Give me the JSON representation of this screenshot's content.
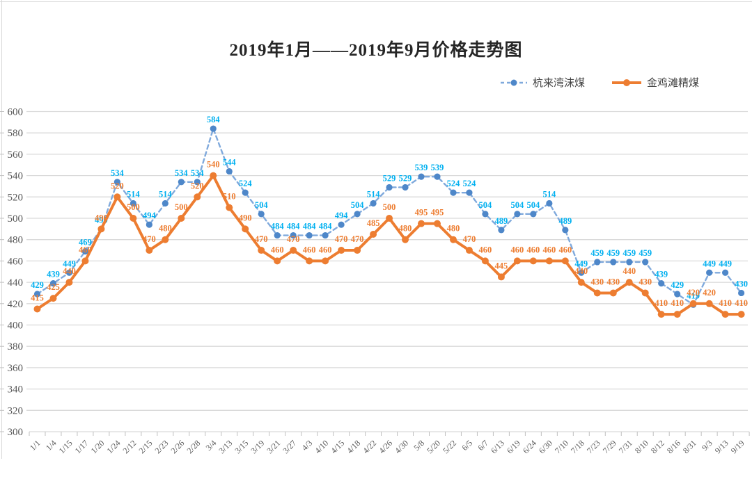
{
  "chart_data": {
    "type": "line",
    "title": "2019年1月——2019年9月价格走势图",
    "xlabel": "",
    "ylabel": "",
    "ylim": [
      300,
      600
    ],
    "ytick_step": 20,
    "grid": "horizontal",
    "grid_color": "#d9d9d9",
    "axis_tick_color": "#bfbfbf",
    "axis_text_color": "#595959",
    "legend_position": "top-right",
    "data_labels_visible": true,
    "categories": [
      "1/1",
      "1/4",
      "1/15",
      "1/17",
      "1/20",
      "1/24",
      "2/12",
      "2/15",
      "2/23",
      "2/26",
      "2/28",
      "3/4",
      "3/13",
      "3/15",
      "3/19",
      "3/21",
      "3/27",
      "4/3",
      "4/10",
      "4/15",
      "4/18",
      "4/22",
      "4/26",
      "4/30",
      "5/8",
      "5/20",
      "5/22",
      "6/5",
      "6/7",
      "6/13",
      "6/19",
      "6/24",
      "6/30",
      "7/10",
      "7/18",
      "7/23",
      "7/29",
      "7/31",
      "8/10",
      "8/12",
      "8/16",
      "8/31",
      "9/3",
      "9/13",
      "9/19"
    ],
    "series": [
      {
        "name": "杭来湾沫煤",
        "line_style": "dashed",
        "line_color": "#7fa9dc",
        "marker_color": "#4e87c9",
        "label_color": "#00b0f0",
        "values": [
          429,
          439,
          449,
          469,
          490,
          534,
          514,
          494,
          514,
          534,
          534,
          584,
          544,
          524,
          504,
          484,
          484,
          484,
          484,
          494,
          504,
          514,
          529,
          529,
          539,
          539,
          524,
          524,
          504,
          489,
          504,
          504,
          514,
          489,
          449,
          459,
          459,
          459,
          459,
          439,
          429,
          419,
          449,
          449,
          430
        ]
      },
      {
        "name": "金鸡滩精煤",
        "line_style": "solid",
        "line_color": "#ed7d31",
        "marker_color": "#ed7d31",
        "label_color": "#ed7d31",
        "values": [
          415,
          425,
          440,
          460,
          490,
          520,
          500,
          470,
          480,
          500,
          520,
          540,
          510,
          490,
          470,
          460,
          470,
          460,
          460,
          470,
          470,
          485,
          500,
          480,
          495,
          495,
          480,
          470,
          460,
          445,
          460,
          460,
          460,
          460,
          440,
          430,
          430,
          440,
          430,
          410,
          410,
          420,
          420,
          410,
          410
        ]
      }
    ]
  }
}
